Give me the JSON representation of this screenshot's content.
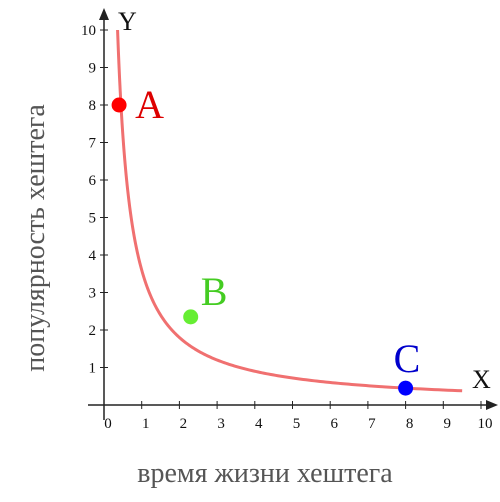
{
  "chart_data": {
    "type": "line",
    "x_axis_letter": "X",
    "y_axis_letter": "Y",
    "xlabel": "время жизни хештега",
    "ylabel": "популярность хештега",
    "xlim": [
      0,
      10
    ],
    "ylim": [
      0,
      10
    ],
    "x_ticks": [
      "0",
      "1",
      "2",
      "3",
      "4",
      "5",
      "6",
      "7",
      "8",
      "9",
      "10"
    ],
    "y_ticks": [
      "1",
      "2",
      "3",
      "4",
      "5",
      "6",
      "7",
      "8",
      "9",
      "10"
    ],
    "grid": false,
    "series": [
      {
        "function": "y = 3.6 / x",
        "x_range": [
          0.36,
          9.5
        ],
        "color": "#f07070"
      }
    ],
    "points": [
      {
        "label": "A",
        "x": 0.4,
        "y": 8.0,
        "color": "#ff0000",
        "label_color": "#dd0000"
      },
      {
        "label": "B",
        "x": 2.3,
        "y": 2.35,
        "color": "#66ee33",
        "label_color": "#44cc22"
      },
      {
        "label": "C",
        "x": 8.0,
        "y": 0.45,
        "color": "#0000ff",
        "label_color": "#0000cc"
      }
    ]
  }
}
